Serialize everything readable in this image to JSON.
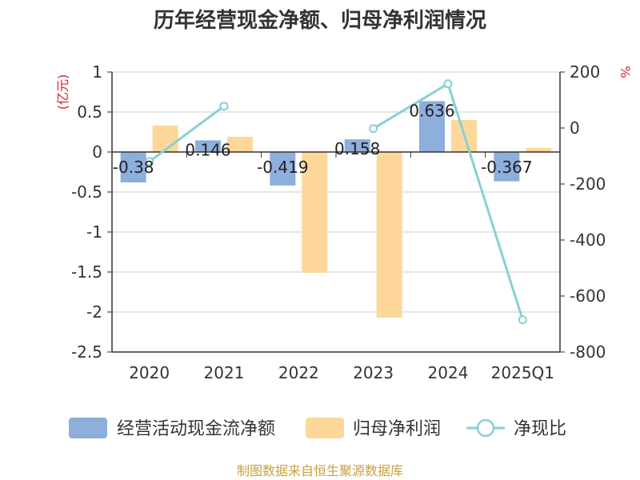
{
  "chart_data": {
    "type": "bar",
    "title": "历年经营现金净额、归母净利润情况",
    "categories": [
      "2020",
      "2021",
      "2022",
      "2023",
      "2024",
      "2025Q1"
    ],
    "y_left": {
      "unit": "(亿元)",
      "range": [
        -2.5,
        1
      ],
      "ticks": [
        "1",
        "0.5",
        "0",
        "-0.5",
        "-1",
        "-1.5",
        "-2",
        "-2.5"
      ]
    },
    "y_right": {
      "unit": "%",
      "range": [
        -800,
        200
      ],
      "ticks": [
        "200",
        "0",
        "-200",
        "-400",
        "-600",
        "-800"
      ]
    },
    "series": [
      {
        "name": "经营活动现金流净额",
        "type": "bar",
        "axis": "left",
        "color": "#8eaedc",
        "values": [
          -0.38,
          0.146,
          -0.419,
          0.158,
          0.636,
          -0.367
        ],
        "labels": [
          "-0.38",
          "0.146",
          "-0.419",
          "0.158",
          "0.636",
          "-0.367"
        ]
      },
      {
        "name": "归母净利润",
        "type": "bar",
        "axis": "left",
        "color": "#fdd89a",
        "values": [
          0.33,
          0.19,
          -1.51,
          -2.07,
          0.4,
          0.05
        ]
      },
      {
        "name": "净现比",
        "type": "line",
        "axis": "right",
        "color": "#88d0d4",
        "values": [
          -120,
          78,
          null,
          -2,
          158,
          -685
        ]
      }
    ],
    "grid": true,
    "legend_position": "bottom"
  },
  "source": "制图数据来自恒生聚源数据库"
}
